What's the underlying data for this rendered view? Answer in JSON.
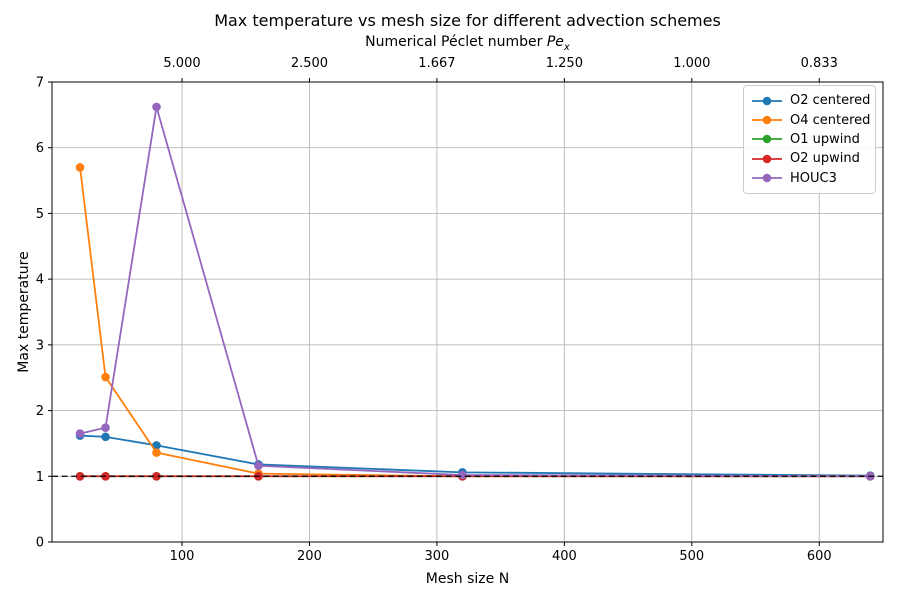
{
  "chart_data": {
    "type": "line",
    "title": "Max temperature vs mesh size for different advection schemes",
    "xlabel": "Mesh size N",
    "ylabel": "Max temperature",
    "x": [
      20,
      40,
      80,
      160,
      320,
      640
    ],
    "series": [
      {
        "name": "O2 centered",
        "color": "#1f77b4",
        "values": [
          1.62,
          1.6,
          1.47,
          1.18,
          1.06,
          1.01
        ]
      },
      {
        "name": "O4 centered",
        "color": "#ff7f0e",
        "values": [
          5.7,
          2.51,
          1.36,
          1.04,
          1.0,
          1.0
        ]
      },
      {
        "name": "O1 upwind",
        "color": "#2ca02c",
        "values": [
          1.0,
          1.0,
          1.0,
          1.0,
          1.0,
          1.0
        ]
      },
      {
        "name": "O2 upwind",
        "color": "#d62728",
        "values": [
          1.0,
          1.0,
          1.0,
          1.0,
          1.0,
          1.0
        ]
      },
      {
        "name": "HOUC3",
        "color": "#9467bd",
        "values": [
          1.65,
          1.74,
          6.62,
          1.16,
          1.02,
          1.0
        ]
      }
    ],
    "xlim": [
      -2,
      650
    ],
    "ylim": [
      0,
      7
    ],
    "xticks": [
      100,
      200,
      300,
      400,
      500,
      600
    ],
    "xtick_labels": [
      "100",
      "200",
      "300",
      "400",
      "500",
      "600"
    ],
    "yticks": [
      0,
      1,
      2,
      3,
      4,
      5,
      6,
      7
    ],
    "ytick_labels": [
      "0",
      "1",
      "2",
      "3",
      "4",
      "5",
      "6",
      "7"
    ],
    "top_axis": {
      "label_prefix": "Numerical Péclet number ",
      "symbol": "Pe",
      "symbol_sub": "x",
      "ticks": [
        100,
        200,
        300,
        400,
        500,
        600
      ],
      "tick_labels": [
        "5.000",
        "2.500",
        "1.667",
        "1.250",
        "1.000",
        "0.833"
      ]
    },
    "reference_line": {
      "y": 1.0,
      "style": "dashed",
      "color": "#000000"
    },
    "grid": true,
    "grid_color": "#b8b8b8",
    "legend_position": "upper right"
  }
}
